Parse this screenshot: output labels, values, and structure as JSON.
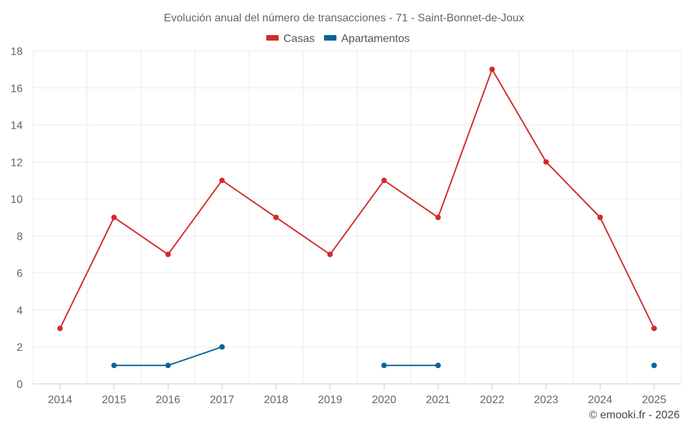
{
  "chart_data": {
    "type": "line",
    "title": "Evolución anual del número de transacciones - 71 - Saint-Bonnet-de-Joux",
    "categories": [
      "2014",
      "2015",
      "2016",
      "2017",
      "2018",
      "2019",
      "2020",
      "2021",
      "2022",
      "2023",
      "2024",
      "2025"
    ],
    "ylim": [
      0,
      18
    ],
    "yticks": [
      0,
      2,
      4,
      6,
      8,
      10,
      12,
      14,
      16,
      18
    ],
    "grid": true,
    "legend_position": "top-center",
    "series": [
      {
        "name": "Casas",
        "color": "#d32a2a",
        "values": [
          3,
          9,
          7,
          11,
          9,
          7,
          11,
          9,
          17,
          12,
          9,
          3
        ]
      },
      {
        "name": "Apartamentos",
        "color": "#0a6596",
        "values": [
          null,
          1,
          1,
          2,
          null,
          null,
          1,
          1,
          null,
          null,
          null,
          1
        ]
      }
    ]
  },
  "credit": "© emooki.fr - 2026"
}
